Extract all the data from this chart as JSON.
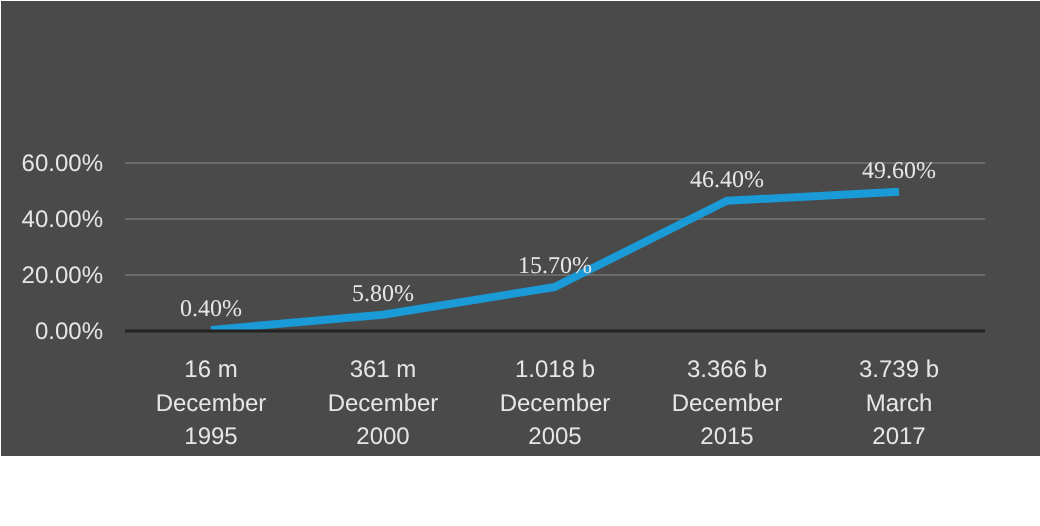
{
  "chart_data": {
    "type": "line",
    "categories": [
      "16 m\nDecember\n1995",
      "361 m\nDecember\n2000",
      "1.018 b\nDecember\n2005",
      "3.366 b\nDecember\n2015",
      "3.739 b\nMarch\n2017"
    ],
    "series": [
      {
        "color": "#1a9ad6",
        "values": [
          0.4,
          5.8,
          15.7,
          46.4,
          49.6
        ]
      }
    ],
    "value_labels": [
      "0.40%",
      "5.80%",
      "15.70%",
      "46.40%",
      "49.60%"
    ],
    "ylim": [
      0,
      62
    ],
    "yticks": [
      {
        "value": 0,
        "label": "0.00%"
      },
      {
        "value": 20,
        "label": "20.00%"
      },
      {
        "value": 40,
        "label": "40.00%"
      },
      {
        "value": 60,
        "label": "60.00%"
      }
    ],
    "grid": "y",
    "marker": "none",
    "line_style": "solid"
  }
}
